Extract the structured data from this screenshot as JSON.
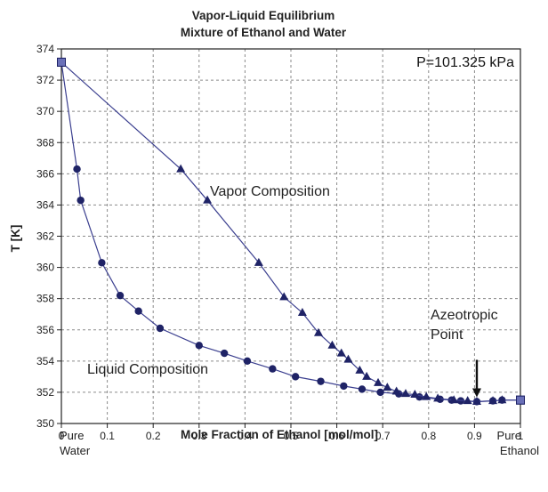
{
  "chart_data": {
    "type": "scatter",
    "title": "Vapor-Liquid Equilibrium",
    "subtitle": "Mixture of Ethanol and Water",
    "xlabel": "Mole Fraction of Ethanol [mol/mol]",
    "ylabel": "T [K]",
    "xlim": [
      0,
      1
    ],
    "ylim": [
      350,
      374
    ],
    "x_ticks": [
      "0",
      "0.1",
      "0.2",
      "0.3",
      "0.4",
      "0.5",
      "0.6",
      "0.7",
      "0.8",
      "0.9",
      "1"
    ],
    "y_ticks": [
      "350",
      "352",
      "354",
      "356",
      "358",
      "360",
      "362",
      "364",
      "366",
      "368",
      "370",
      "372",
      "374"
    ],
    "x_edge_labels": {
      "left": [
        "Pure",
        "Water"
      ],
      "right": [
        "Pure",
        "Ethanol"
      ]
    },
    "grid": true,
    "pressure_label": "P=101.325 kPa",
    "annotations": {
      "vapor": "Vapor Composition",
      "liquid": "Liquid Composition",
      "azeotrope": [
        "Azeotropic",
        "Point"
      ]
    },
    "azeotrope": {
      "x": 0.905,
      "y": 351.4
    },
    "colors": {
      "series": "#3b3f8f",
      "markers": "#1f2366",
      "grid": "#8a8a8a"
    },
    "series": [
      {
        "marker": "circle",
        "points": [
          [
            0.0,
            373.15
          ],
          [
            0.034,
            366.3
          ],
          [
            0.042,
            364.3
          ],
          [
            0.088,
            360.3
          ],
          [
            0.128,
            358.2
          ],
          [
            0.168,
            357.2
          ],
          [
            0.215,
            356.1
          ],
          [
            0.3,
            355.0
          ],
          [
            0.355,
            354.5
          ],
          [
            0.405,
            354.0
          ],
          [
            0.46,
            353.5
          ],
          [
            0.51,
            353.0
          ],
          [
            0.565,
            352.7
          ],
          [
            0.615,
            352.4
          ],
          [
            0.655,
            352.2
          ],
          [
            0.695,
            352.0
          ],
          [
            0.735,
            351.9
          ],
          [
            0.78,
            351.7
          ],
          [
            0.825,
            351.55
          ],
          [
            0.85,
            351.5
          ],
          [
            0.87,
            351.45
          ],
          [
            0.905,
            351.4
          ],
          [
            0.94,
            351.45
          ],
          [
            0.96,
            351.5
          ],
          [
            1.0,
            351.5
          ]
        ]
      },
      {
        "marker": "triangle",
        "points": [
          [
            0.0,
            373.15
          ],
          [
            0.26,
            366.3
          ],
          [
            0.318,
            364.3
          ],
          [
            0.43,
            360.3
          ],
          [
            0.485,
            358.1
          ],
          [
            0.525,
            357.1
          ],
          [
            0.56,
            355.8
          ],
          [
            0.59,
            355.0
          ],
          [
            0.61,
            354.5
          ],
          [
            0.625,
            354.1
          ],
          [
            0.65,
            353.4
          ],
          [
            0.665,
            353.0
          ],
          [
            0.69,
            352.6
          ],
          [
            0.71,
            352.3
          ],
          [
            0.73,
            352.05
          ],
          [
            0.75,
            351.9
          ],
          [
            0.77,
            351.85
          ],
          [
            0.795,
            351.7
          ],
          [
            0.82,
            351.6
          ],
          [
            0.855,
            351.5
          ],
          [
            0.885,
            351.45
          ],
          [
            0.905,
            351.4
          ],
          [
            0.94,
            351.45
          ],
          [
            0.96,
            351.5
          ],
          [
            1.0,
            351.5
          ]
        ]
      }
    ]
  }
}
